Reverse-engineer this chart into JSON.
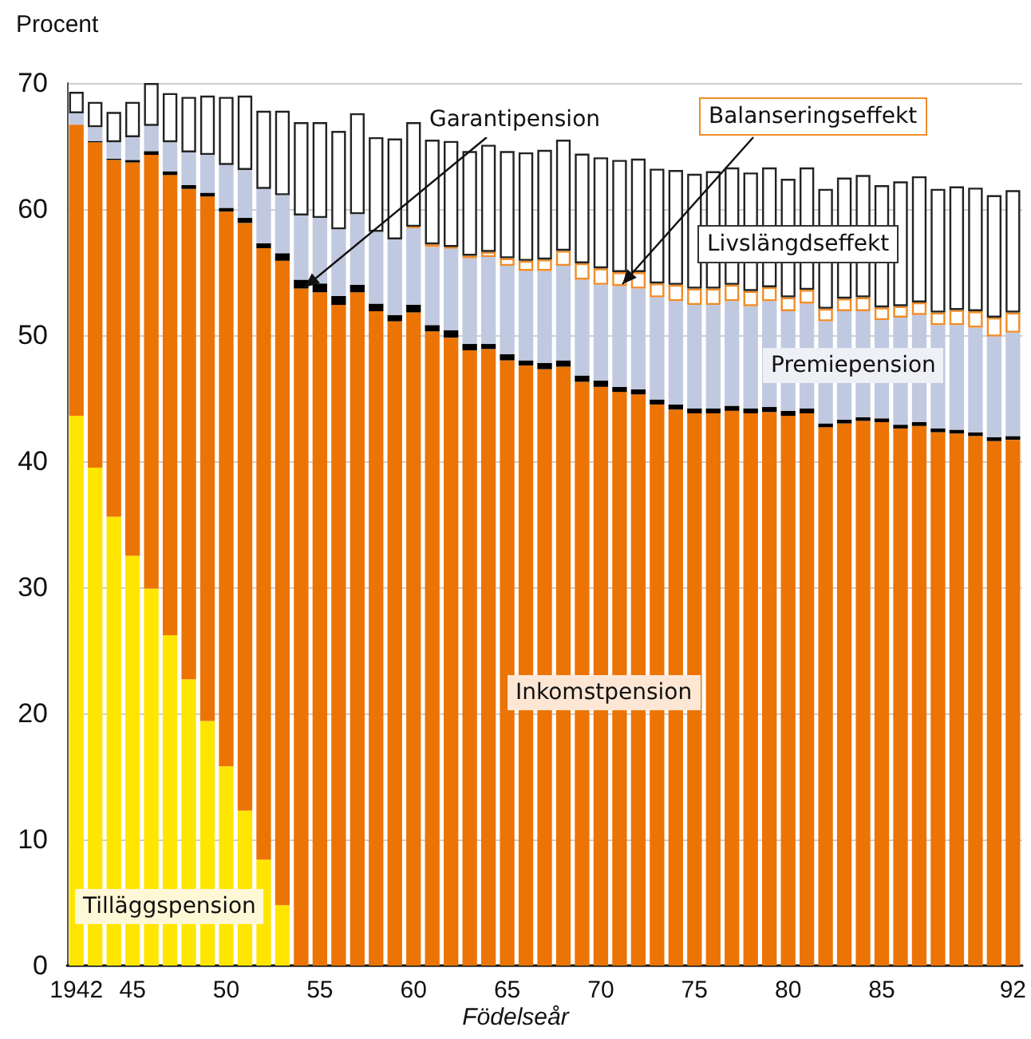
{
  "chart_data": {
    "type": "bar",
    "stacked": true,
    "ylabel": "Procent",
    "xlabel": "Födelseår",
    "categories": [
      "1942",
      null,
      null,
      "45",
      null,
      null,
      null,
      null,
      "50",
      null,
      null,
      null,
      null,
      "55",
      null,
      null,
      null,
      null,
      "60",
      null,
      null,
      null,
      null,
      "65",
      null,
      null,
      null,
      null,
      "70",
      null,
      null,
      null,
      null,
      "75",
      null,
      null,
      null,
      null,
      "80",
      null,
      null,
      null,
      null,
      "85",
      null,
      null,
      null,
      null,
      null,
      null,
      "92"
    ],
    "series": [
      {
        "name": "Tilläggspension",
        "color": "#ffe600",
        "values": [
          43.6,
          39.5,
          35.6,
          32.5,
          29.9,
          26.2,
          22.7,
          19.4,
          15.8,
          12.3,
          8.4,
          4.8,
          null,
          null,
          null,
          null,
          null,
          null,
          null,
          null,
          null,
          null,
          null,
          null,
          null,
          null,
          null,
          null,
          null,
          null,
          null,
          null,
          null,
          null,
          null,
          null,
          null,
          null,
          null,
          null,
          null,
          null,
          null,
          null,
          null,
          null,
          null,
          null,
          null,
          null,
          null
        ]
      },
      {
        "name": "Inkomstpension",
        "color": "#ec7405",
        "values": [
          23.1,
          25.8,
          28.3,
          31.2,
          34.4,
          36.5,
          38.9,
          41.6,
          44.0,
          46.6,
          48.5,
          51.1,
          53.7,
          53.4,
          52.4,
          53.4,
          51.9,
          51.1,
          51.8,
          50.3,
          49.8,
          48.8,
          48.9,
          48.0,
          47.6,
          47.3,
          47.5,
          46.3,
          45.9,
          45.5,
          45.3,
          44.5,
          44.1,
          43.8,
          43.8,
          44.0,
          43.8,
          43.9,
          43.6,
          43.8,
          42.7,
          43.0,
          43.2,
          43.1,
          42.6,
          42.8,
          42.3,
          42.2,
          42.0,
          41.6,
          41.7
        ]
      },
      {
        "name": "Garantipension",
        "color": "#000000",
        "values": [
          null,
          0.1,
          0.1,
          0.2,
          0.3,
          0.3,
          0.3,
          0.3,
          0.3,
          0.4,
          0.4,
          0.6,
          0.7,
          0.7,
          0.7,
          0.6,
          0.6,
          0.5,
          0.6,
          0.5,
          0.6,
          0.5,
          0.4,
          0.5,
          0.4,
          0.5,
          0.5,
          0.5,
          0.5,
          0.4,
          0.4,
          0.4,
          0.4,
          0.4,
          0.4,
          0.4,
          0.4,
          0.4,
          0.4,
          0.4,
          0.3,
          0.3,
          0.3,
          0.3,
          0.3,
          0.3,
          0.3,
          0.3,
          0.3,
          0.3,
          0.3
        ]
      },
      {
        "name": "Premiepension",
        "color": "#c1c9e0",
        "values": [
          0.9,
          1.1,
          1.3,
          1.8,
          2.0,
          2.3,
          2.6,
          3.0,
          3.4,
          3.8,
          4.3,
          4.6,
          5.1,
          5.2,
          5.3,
          5.6,
          5.7,
          6.0,
          6.1,
          6.2,
          6.5,
          6.8,
          6.9,
          7.0,
          7.1,
          7.3,
          7.5,
          7.6,
          7.6,
          8.0,
          8.0,
          8.1,
          8.2,
          8.2,
          8.2,
          8.3,
          8.1,
          8.4,
          7.9,
          8.3,
          8.1,
          8.6,
          8.4,
          7.8,
          8.5,
          8.5,
          8.2,
          8.3,
          8.3,
          8.0,
          8.2
        ]
      },
      {
        "name": "Balanseringseffekt",
        "color": "#f08c28",
        "values": [
          null,
          null,
          null,
          null,
          null,
          null,
          null,
          null,
          null,
          null,
          null,
          null,
          null,
          null,
          null,
          null,
          null,
          null,
          0.1,
          0.2,
          0.1,
          0.2,
          0.4,
          0.6,
          0.8,
          0.9,
          1.2,
          1.3,
          1.3,
          1.1,
          1.3,
          1.1,
          1.3,
          1.3,
          1.3,
          1.3,
          1.2,
          1.1,
          1.1,
          1.1,
          1.0,
          1.0,
          1.1,
          1.0,
          0.9,
          1.0,
          1.0,
          1.2,
          1.3,
          1.5,
          1.6
        ]
      },
      {
        "name": "Livslängdseffekt",
        "color": "#222222",
        "values": [
          1.7,
          2.0,
          2.4,
          2.8,
          3.4,
          3.9,
          4.4,
          4.7,
          5.4,
          5.9,
          6.2,
          6.7,
          7.4,
          7.6,
          7.8,
          8.0,
          7.5,
          8.0,
          8.3,
          8.3,
          8.4,
          8.3,
          8.5,
          8.5,
          8.6,
          8.7,
          8.8,
          8.7,
          8.8,
          8.9,
          9.0,
          9.1,
          9.1,
          9.1,
          9.3,
          9.3,
          9.4,
          9.5,
          9.4,
          9.7,
          9.5,
          9.6,
          9.7,
          9.7,
          9.9,
          10.0,
          9.8,
          9.8,
          9.8,
          9.7,
          9.7
        ]
      }
    ],
    "ylim": [
      0,
      70
    ],
    "yticks": [
      0,
      10,
      20,
      30,
      40,
      50,
      60,
      70
    ],
    "grid": "y",
    "legend": false
  }
}
